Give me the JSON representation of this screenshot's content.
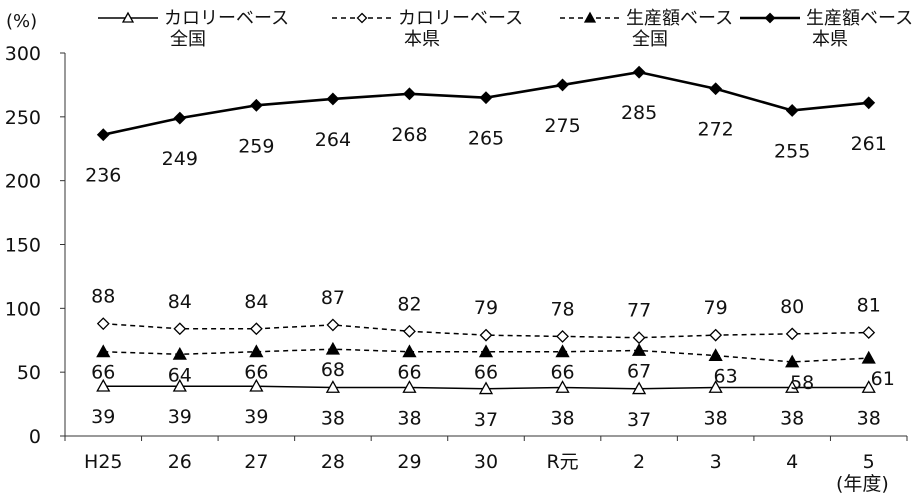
{
  "chart_data": {
    "type": "line",
    "y_unit": "(%)",
    "x_unit": "(年度)",
    "categories": [
      "H25",
      "26",
      "27",
      "28",
      "29",
      "30",
      "R元",
      "2",
      "3",
      "4",
      "5"
    ],
    "ylim": [
      0,
      300
    ],
    "yticks": [
      0,
      50,
      100,
      150,
      200,
      250,
      300
    ],
    "grid": false,
    "legend_position": "top",
    "series": [
      {
        "name": "カロリーベース 全国",
        "name_lines": [
          "カロリーベース",
          "全国"
        ],
        "line_style": "solid",
        "marker": "open-triangle",
        "color": "#000000",
        "values": [
          39,
          39,
          39,
          38,
          38,
          37,
          38,
          37,
          38,
          38,
          38
        ]
      },
      {
        "name": "カロリーベース 本県",
        "name_lines": [
          "カロリーベース",
          "本県"
        ],
        "line_style": "dashed",
        "marker": "open-diamond",
        "color": "#000000",
        "values": [
          88,
          84,
          84,
          87,
          82,
          79,
          78,
          77,
          79,
          80,
          81
        ]
      },
      {
        "name": "生産額ベース 全国",
        "name_lines": [
          "生産額ベース",
          "全国"
        ],
        "line_style": "dashed",
        "marker": "filled-triangle",
        "color": "#000000",
        "values": [
          66,
          64,
          66,
          68,
          66,
          66,
          66,
          67,
          63,
          58,
          61
        ]
      },
      {
        "name": "生産額ベース 本県",
        "name_lines": [
          "生産額ベース",
          "本県"
        ],
        "line_style": "solid-bold",
        "marker": "filled-diamond",
        "color": "#000000",
        "values": [
          236,
          249,
          259,
          264,
          268,
          265,
          275,
          285,
          272,
          255,
          261
        ]
      }
    ]
  }
}
